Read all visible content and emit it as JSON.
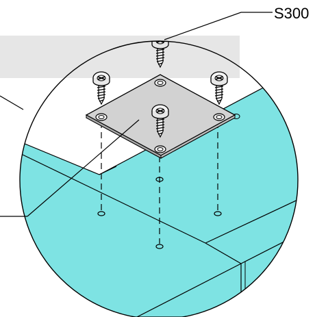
{
  "diagram": {
    "part_label": "S300",
    "colors": {
      "cabinet_fill": "#7ee3e3",
      "plate_fill": "#d0d0d0",
      "watermark": "#e6e6e6",
      "line": "#000000",
      "background": "#ffffff"
    }
  }
}
